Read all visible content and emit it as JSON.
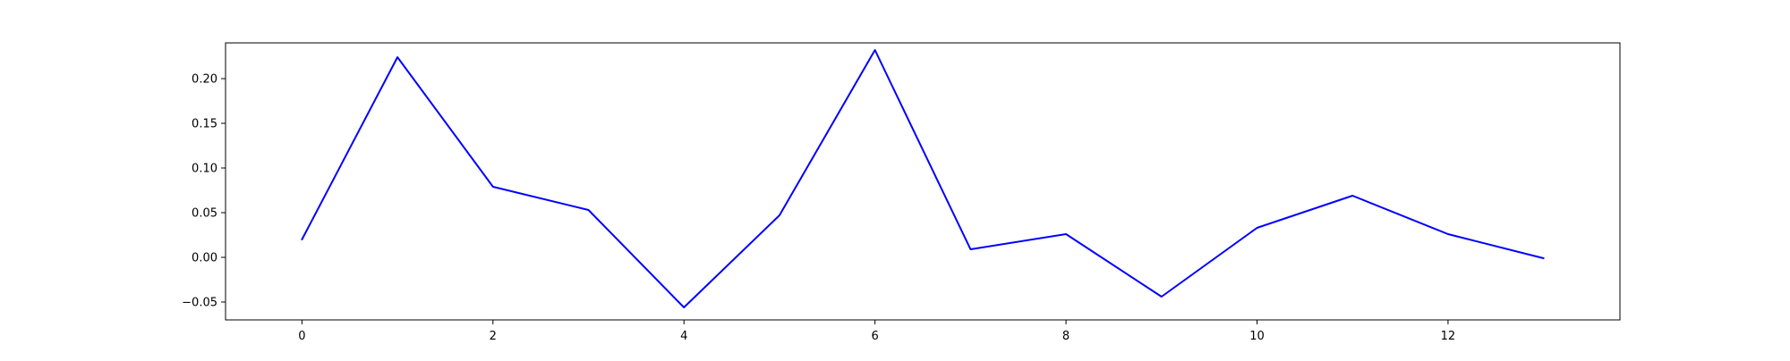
{
  "chart_data": {
    "type": "line",
    "title": "",
    "xlabel": "",
    "ylabel": "",
    "xlim": [
      -0.8,
      13.8
    ],
    "ylim": [
      -0.07,
      0.24
    ],
    "grid": false,
    "x_ticks": [
      0,
      2,
      4,
      6,
      8,
      10,
      12
    ],
    "x_tick_labels": [
      "0",
      "2",
      "4",
      "6",
      "8",
      "10",
      "12"
    ],
    "y_ticks": [
      -0.05,
      0.0,
      0.05,
      0.1,
      0.15,
      0.2
    ],
    "y_tick_labels": [
      "−0.05",
      "0.00",
      "0.05",
      "0.10",
      "0.15",
      "0.20"
    ],
    "series": [
      {
        "color": "#0000ff",
        "x": [
          0,
          1,
          2,
          3,
          4,
          5,
          6,
          7,
          8,
          9,
          10,
          11,
          12,
          13
        ],
        "y": [
          0.02,
          0.224,
          0.079,
          0.053,
          -0.056,
          0.047,
          0.232,
          0.009,
          0.026,
          -0.044,
          0.033,
          0.069,
          0.026,
          -0.001
        ]
      }
    ]
  }
}
